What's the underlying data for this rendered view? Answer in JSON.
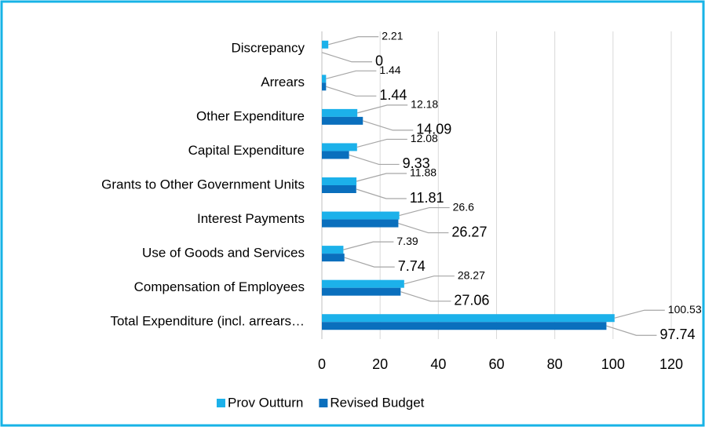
{
  "chart_data": {
    "type": "bar",
    "orientation": "horizontal",
    "categories": [
      "Discrepancy",
      "Arrears",
      "Other Expenditure",
      "Capital Expenditure",
      "Grants to Other Government Units",
      "Interest Payments",
      "Use of Goods and Services",
      "Compensation of Employees",
      "Total Expenditure (incl. arrears…"
    ],
    "series": [
      {
        "name": "Prov Outturn",
        "color": "#1cb1ea",
        "values": [
          2.21,
          1.44,
          12.18,
          12.08,
          11.88,
          26.6,
          7.39,
          28.27,
          100.53
        ]
      },
      {
        "name": "Revised Budget",
        "color": "#0a6fbd",
        "values": [
          0,
          1.44,
          14.09,
          9.33,
          11.81,
          26.27,
          7.74,
          27.06,
          97.74
        ]
      }
    ],
    "xlim": [
      0,
      120
    ],
    "xticks": [
      0,
      20,
      40,
      60,
      80,
      100,
      120
    ],
    "grid": true,
    "legend": "bottom"
  }
}
